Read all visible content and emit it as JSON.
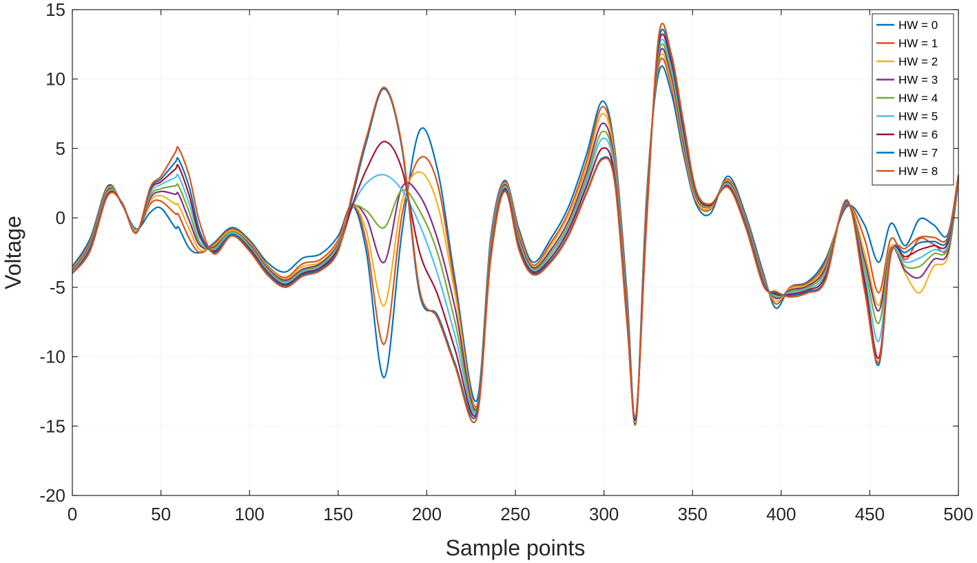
{
  "chart_data": {
    "type": "line",
    "title": "",
    "xlabel": "Sample points",
    "ylabel": "Voltage",
    "xlim": [
      0,
      500
    ],
    "ylim": [
      -20,
      15
    ],
    "xticks": [
      0,
      50,
      100,
      150,
      200,
      250,
      300,
      350,
      400,
      450,
      500
    ],
    "yticks": [
      -20,
      -15,
      -10,
      -5,
      0,
      5,
      10,
      15
    ],
    "xtick_labels": [
      "0",
      "50",
      "100",
      "150",
      "200",
      "250",
      "300",
      "350",
      "400",
      "450",
      "500"
    ],
    "ytick_labels": [
      "-20",
      "-15",
      "-10",
      "-5",
      "0",
      "5",
      "10",
      "15"
    ],
    "grid": true,
    "legend_position": "top-right",
    "x": [
      0,
      10,
      20,
      28,
      36,
      44,
      50,
      58,
      60,
      66,
      72,
      80,
      90,
      100,
      110,
      120,
      130,
      140,
      150,
      158,
      166,
      176,
      186,
      196,
      206,
      216,
      228,
      236,
      244,
      252,
      260,
      270,
      280,
      290,
      299,
      306,
      313,
      318,
      324,
      331,
      338,
      345,
      352,
      360,
      370,
      380,
      390,
      397,
      405,
      415,
      425,
      437,
      447,
      455,
      462,
      470,
      478,
      486,
      494,
      500
    ],
    "series": [
      {
        "name": "HW = 0",
        "color": "#0072BD",
        "values": [
          -3.5,
          -1.5,
          2.3,
          1.0,
          -0.8,
          0.4,
          0.7,
          -0.7,
          -0.7,
          -2.2,
          -2.5,
          -1.8,
          -0.7,
          -1.6,
          -3.2,
          -3.9,
          -2.9,
          -2.6,
          -1.3,
          0.9,
          -2.5,
          -11.5,
          -1.0,
          6.3,
          3.5,
          -4.5,
          -13.2,
          -1.5,
          2.7,
          -0.8,
          -3.2,
          -1.5,
          0.8,
          4.5,
          8.4,
          5.0,
          -5.5,
          -14.5,
          1.5,
          10.5,
          9.0,
          4.5,
          1.0,
          0.3,
          3.0,
          0.2,
          -4.0,
          -6.5,
          -5.0,
          -4.6,
          -3.0,
          0.8,
          -0.5,
          -3.2,
          -0.4,
          -2.0,
          -0.1,
          -0.5,
          -1.2,
          3.1
        ]
      },
      {
        "name": "HW = 1",
        "color": "#D95319",
        "values": [
          -3.6,
          -1.7,
          2.2,
          1.0,
          -0.9,
          1.0,
          1.2,
          0.3,
          0.2,
          -1.5,
          -2.5,
          -1.9,
          -0.8,
          -1.7,
          -3.4,
          -4.3,
          -3.3,
          -3.0,
          -1.6,
          1.0,
          -1.8,
          -9.1,
          0.2,
          4.3,
          2.5,
          -5.0,
          -13.6,
          -1.8,
          2.6,
          -1.0,
          -3.4,
          -1.8,
          0.4,
          4.0,
          8.0,
          4.7,
          -6.0,
          -14.8,
          1.2,
          11.0,
          9.5,
          4.8,
          1.2,
          0.6,
          2.8,
          0.0,
          -4.2,
          -6.2,
          -5.0,
          -4.7,
          -3.2,
          0.9,
          -1.5,
          -5.4,
          -1.5,
          -3.0,
          -1.5,
          -1.9,
          -2.2,
          2.7
        ]
      },
      {
        "name": "HW = 2",
        "color": "#EDB120",
        "values": [
          -3.7,
          -1.8,
          2.1,
          1.0,
          -0.9,
          1.2,
          1.6,
          1.0,
          0.9,
          -0.8,
          -2.3,
          -2.0,
          -0.9,
          -1.8,
          -3.5,
          -4.4,
          -3.5,
          -3.2,
          -1.8,
          0.9,
          -1.0,
          -6.3,
          1.2,
          3.3,
          1.0,
          -5.5,
          -13.7,
          -2.0,
          2.5,
          -1.2,
          -3.5,
          -2.0,
          0.2,
          3.6,
          7.5,
          4.4,
          -6.3,
          -14.8,
          1.0,
          11.3,
          9.8,
          5.0,
          1.3,
          0.7,
          2.7,
          -0.1,
          -4.3,
          -6.0,
          -5.1,
          -4.8,
          -3.4,
          1.0,
          -2.5,
          -6.3,
          -2.0,
          -4.0,
          -5.4,
          -3.5,
          -2.8,
          2.6
        ]
      },
      {
        "name": "HW = 3",
        "color": "#7E2F8E",
        "values": [
          -3.8,
          -1.9,
          2.0,
          1.0,
          -1.0,
          1.4,
          1.9,
          1.7,
          1.7,
          -0.2,
          -2.0,
          -2.1,
          -1.0,
          -1.9,
          -3.6,
          -4.5,
          -3.7,
          -3.3,
          -1.9,
          0.8,
          0.0,
          -3.2,
          2.2,
          1.6,
          -1.5,
          -6.5,
          -13.8,
          -2.2,
          2.4,
          -1.4,
          -3.6,
          -2.3,
          -0.2,
          3.2,
          6.8,
          4.0,
          -6.5,
          -14.7,
          0.8,
          11.6,
          10.2,
          5.3,
          1.5,
          0.8,
          2.6,
          -0.2,
          -4.4,
          -5.8,
          -5.2,
          -4.9,
          -3.6,
          1.0,
          -3.0,
          -6.7,
          -2.2,
          -3.8,
          -4.3,
          -3.0,
          -2.5,
          2.7
        ]
      },
      {
        "name": "HW = 4",
        "color": "#77AC30",
        "values": [
          -3.9,
          -2.0,
          1.9,
          1.1,
          -1.0,
          1.6,
          2.1,
          2.3,
          2.3,
          0.4,
          -1.8,
          -2.2,
          -1.0,
          -2.0,
          -3.7,
          -4.6,
          -3.8,
          -3.4,
          -2.0,
          0.7,
          0.5,
          -0.7,
          2.0,
          0.5,
          -2.5,
          -7.5,
          -13.9,
          -2.4,
          2.3,
          -1.6,
          -3.7,
          -2.5,
          -0.5,
          2.8,
          6.2,
          3.7,
          -6.8,
          -14.6,
          0.5,
          11.9,
          10.5,
          5.6,
          1.6,
          0.8,
          2.5,
          -0.3,
          -4.5,
          -5.7,
          -5.3,
          -5.0,
          -3.8,
          1.1,
          -3.5,
          -7.6,
          -2.3,
          -3.5,
          -3.5,
          -2.6,
          -2.2,
          2.8
        ]
      },
      {
        "name": "HW = 5",
        "color": "#4DBEEE",
        "values": [
          -3.9,
          -2.1,
          1.8,
          1.1,
          -1.0,
          1.8,
          2.4,
          2.9,
          3.0,
          1.0,
          -1.5,
          -2.3,
          -1.1,
          -2.1,
          -3.8,
          -4.7,
          -3.9,
          -3.5,
          -2.1,
          0.8,
          2.5,
          3.1,
          2.0,
          -0.5,
          -4.0,
          -8.5,
          -14.0,
          -2.6,
          2.2,
          -1.8,
          -3.8,
          -2.7,
          -0.7,
          2.5,
          5.7,
          3.4,
          -7.0,
          -14.5,
          0.3,
          12.2,
          10.8,
          5.9,
          1.7,
          0.9,
          2.4,
          -0.4,
          -4.6,
          -5.6,
          -5.4,
          -5.1,
          -4.0,
          1.1,
          -4.0,
          -8.9,
          -2.4,
          -3.2,
          -2.9,
          -2.3,
          -2.0,
          2.9
        ]
      },
      {
        "name": "HW = 6",
        "color": "#A2142F",
        "values": [
          -4.0,
          -2.2,
          1.7,
          1.1,
          -1.1,
          2.0,
          2.6,
          3.5,
          3.7,
          1.6,
          -1.3,
          -2.4,
          -1.2,
          -2.2,
          -3.9,
          -4.8,
          -4.0,
          -3.6,
          -2.2,
          0.9,
          3.5,
          5.5,
          3.5,
          -2.5,
          -5.5,
          -9.5,
          -14.1,
          -2.8,
          2.1,
          -2.0,
          -3.9,
          -2.9,
          -0.9,
          2.2,
          5.0,
          3.0,
          -7.3,
          -14.4,
          0.0,
          12.5,
          11.2,
          6.2,
          1.8,
          0.9,
          2.3,
          -0.5,
          -4.7,
          -5.5,
          -5.5,
          -5.2,
          -4.2,
          1.2,
          -4.5,
          -10.1,
          -2.5,
          -2.8,
          -2.3,
          -2.0,
          -1.8,
          3.0
        ]
      },
      {
        "name": "HW = 7",
        "color": "#0072BD",
        "values": [
          -4.0,
          -2.3,
          1.6,
          1.1,
          -1.1,
          2.1,
          2.8,
          4.0,
          4.2,
          2.2,
          -1.0,
          -2.5,
          -1.2,
          -2.3,
          -4.0,
          -4.9,
          -4.1,
          -3.7,
          -2.3,
          1.5,
          5.5,
          9.3,
          5.0,
          -5.5,
          -7.0,
          -10.5,
          -14.2,
          -3.0,
          2.0,
          -2.2,
          -4.0,
          -3.1,
          -1.2,
          1.8,
          4.3,
          2.7,
          -7.5,
          -14.3,
          -0.3,
          12.8,
          11.5,
          6.5,
          1.9,
          1.0,
          2.2,
          -0.6,
          -4.8,
          -5.4,
          -5.6,
          -5.3,
          -4.4,
          1.2,
          -5.0,
          -10.6,
          -2.6,
          -2.5,
          -1.8,
          -1.7,
          -1.6,
          3.0
        ]
      },
      {
        "name": "HW = 8",
        "color": "#D95319",
        "values": [
          -4.0,
          -2.4,
          1.6,
          1.1,
          -1.1,
          2.2,
          3.0,
          4.7,
          5.0,
          3.0,
          -0.4,
          -2.6,
          -1.3,
          -2.4,
          -4.1,
          -5.0,
          -4.2,
          -3.8,
          -2.4,
          1.8,
          5.8,
          9.4,
          5.2,
          -5.2,
          -7.2,
          -10.7,
          -14.5,
          -3.1,
          1.9,
          -2.3,
          -4.1,
          -3.2,
          -1.3,
          1.7,
          4.2,
          2.6,
          -7.6,
          -14.2,
          -0.5,
          13.2,
          11.8,
          6.8,
          2.0,
          1.0,
          2.2,
          -0.7,
          -4.9,
          -5.3,
          -5.7,
          -5.4,
          -4.5,
          1.3,
          -5.2,
          -10.4,
          -2.6,
          -2.2,
          -1.4,
          -1.4,
          -1.4,
          3.1
        ]
      }
    ]
  }
}
